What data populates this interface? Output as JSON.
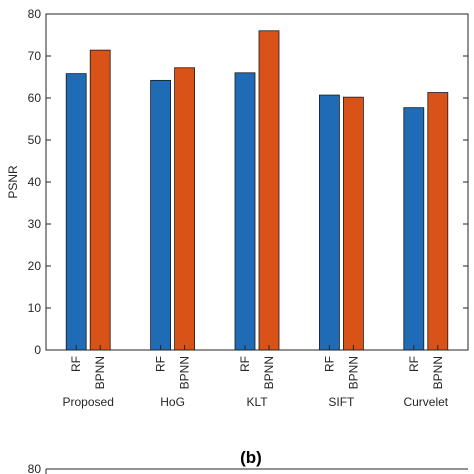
{
  "chart_data": {
    "type": "bar",
    "ylabel": "PSNR",
    "xlabel": "",
    "ylim": [
      0,
      80
    ],
    "yticks": [
      0,
      10,
      20,
      30,
      40,
      50,
      60,
      70,
      80
    ],
    "groups": [
      "Proposed",
      "HoG",
      "KLT",
      "SIFT",
      "Curvelet"
    ],
    "series": [
      {
        "name": "RF",
        "color": "#1f6bb5",
        "values": [
          65.8,
          64.2,
          66.0,
          60.7,
          57.7
        ]
      },
      {
        "name": "BPNN",
        "color": "#d95319",
        "values": [
          71.4,
          67.2,
          76.0,
          60.2,
          61.3
        ]
      }
    ],
    "grid": false,
    "panel_label": "(b)",
    "next_panel_top_tick": "80"
  }
}
